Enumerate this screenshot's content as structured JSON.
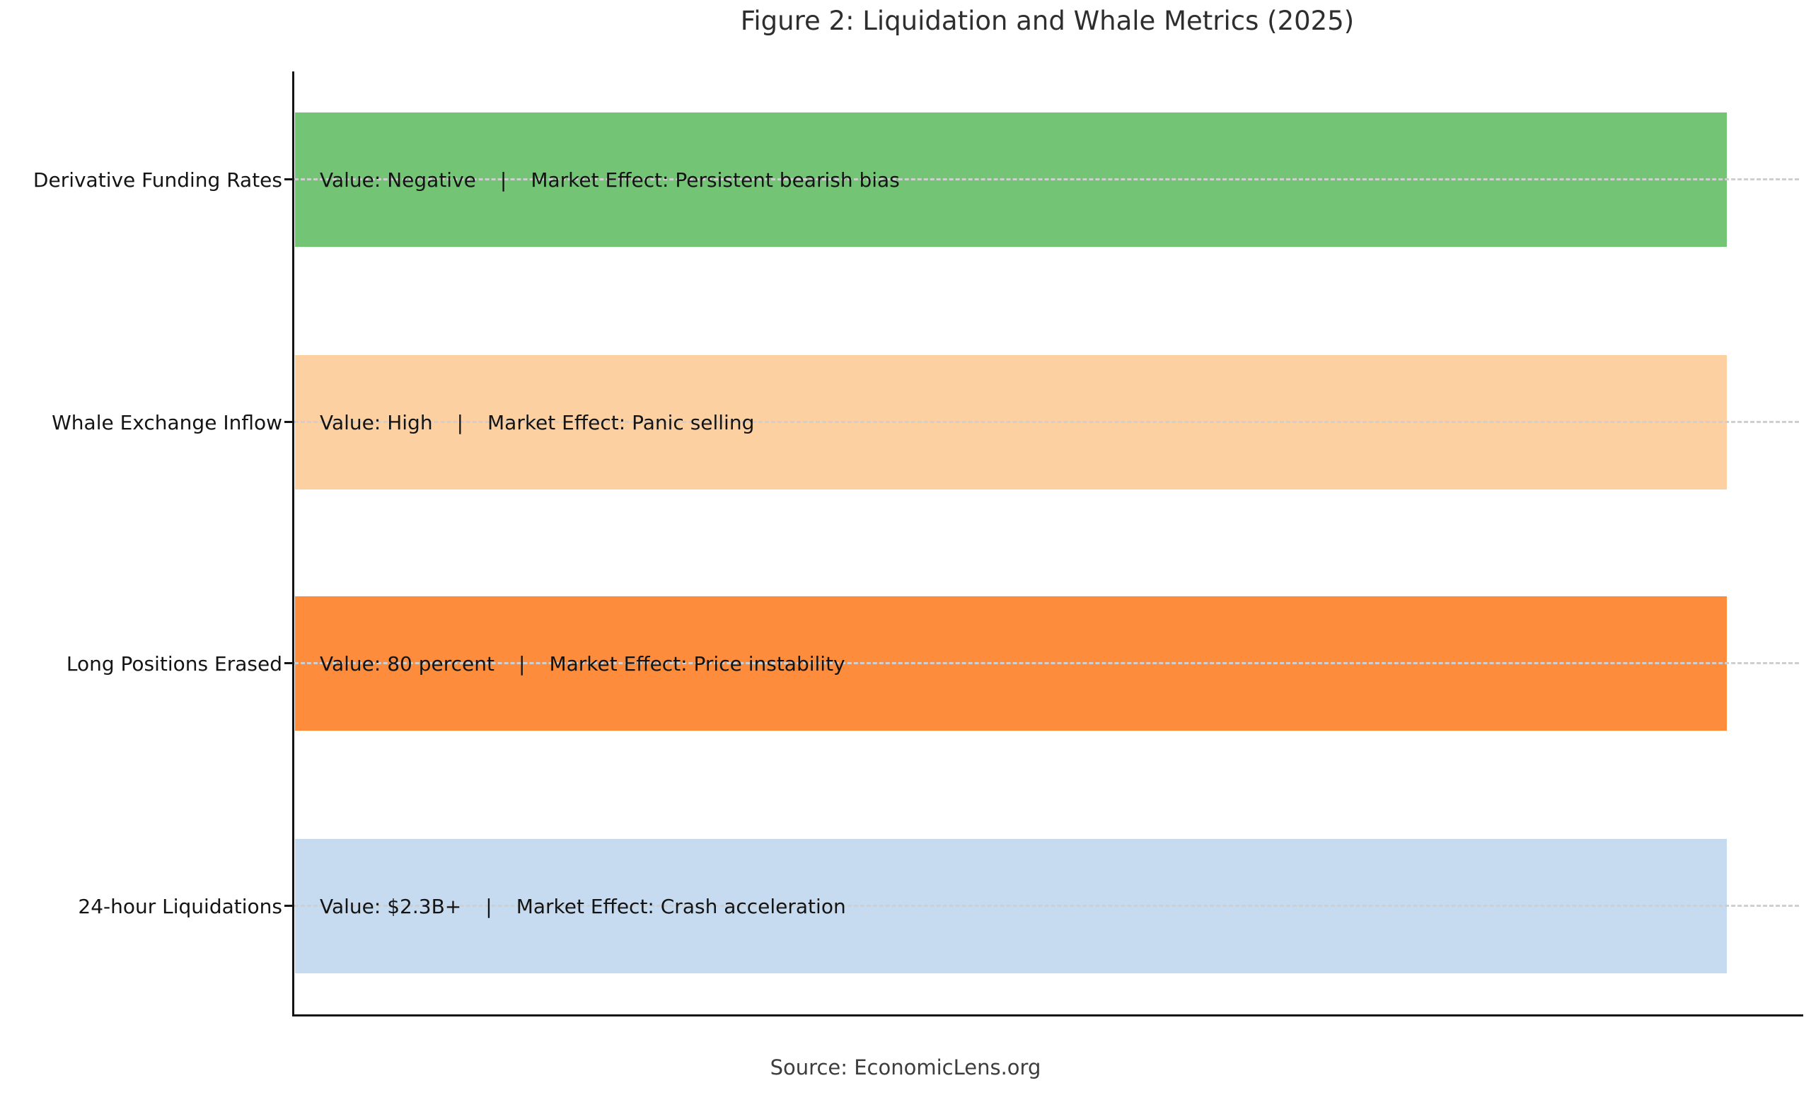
{
  "figure": {
    "title": "Figure 2: Liquidation and Whale Metrics (2025)",
    "source": "Source: EconomicLens.org"
  },
  "chart_data": {
    "type": "bar",
    "orientation": "horizontal",
    "title": "Figure 2: Liquidation and Whale Metrics (2025)",
    "xlabel": "",
    "ylabel": "",
    "legend": "none",
    "grid": "dashed horizontal gridline at each category, light gray, drawn over bars",
    "axes": "left and bottom spines only, black; no x tick labels",
    "xlim": [
      0,
      1.05
    ],
    "categories_top_to_bottom": [
      "Derivative Funding Rates",
      "Whale Exchange Inflow",
      "Long Positions Erased",
      "24-hour Liquidations"
    ],
    "values": [
      1.0,
      1.0,
      1.0,
      1.0
    ],
    "note": "all four bars are equal length; qualitative values are annotated as text inside each bar",
    "bars": [
      {
        "category": "Derivative Funding Rates",
        "value": "Negative",
        "market_effect": "Persistent bearish bias",
        "value_text": "Value: Negative",
        "separator": "|",
        "effect_text": "Market Effect: Persistent bearish bias",
        "color": "#74c476"
      },
      {
        "category": "Whale Exchange Inflow",
        "value": "High",
        "market_effect": "Panic selling",
        "value_text": "Value: High",
        "separator": "|",
        "effect_text": "Market Effect: Panic selling",
        "color": "#fdd0a2"
      },
      {
        "category": "Long Positions Erased",
        "value": "80 percent",
        "market_effect": "Price instability",
        "value_text": "Value: 80 percent",
        "separator": "|",
        "effect_text": "Market Effect: Price instability",
        "color": "#fd8d3c"
      },
      {
        "category": "24-hour Liquidations",
        "value": "$2.3B+",
        "market_effect": "Crash acceleration",
        "value_text": "Value: $2.3B+",
        "separator": "|",
        "effect_text": "Market Effect: Crash acceleration",
        "color": "#c6dbef"
      }
    ]
  }
}
